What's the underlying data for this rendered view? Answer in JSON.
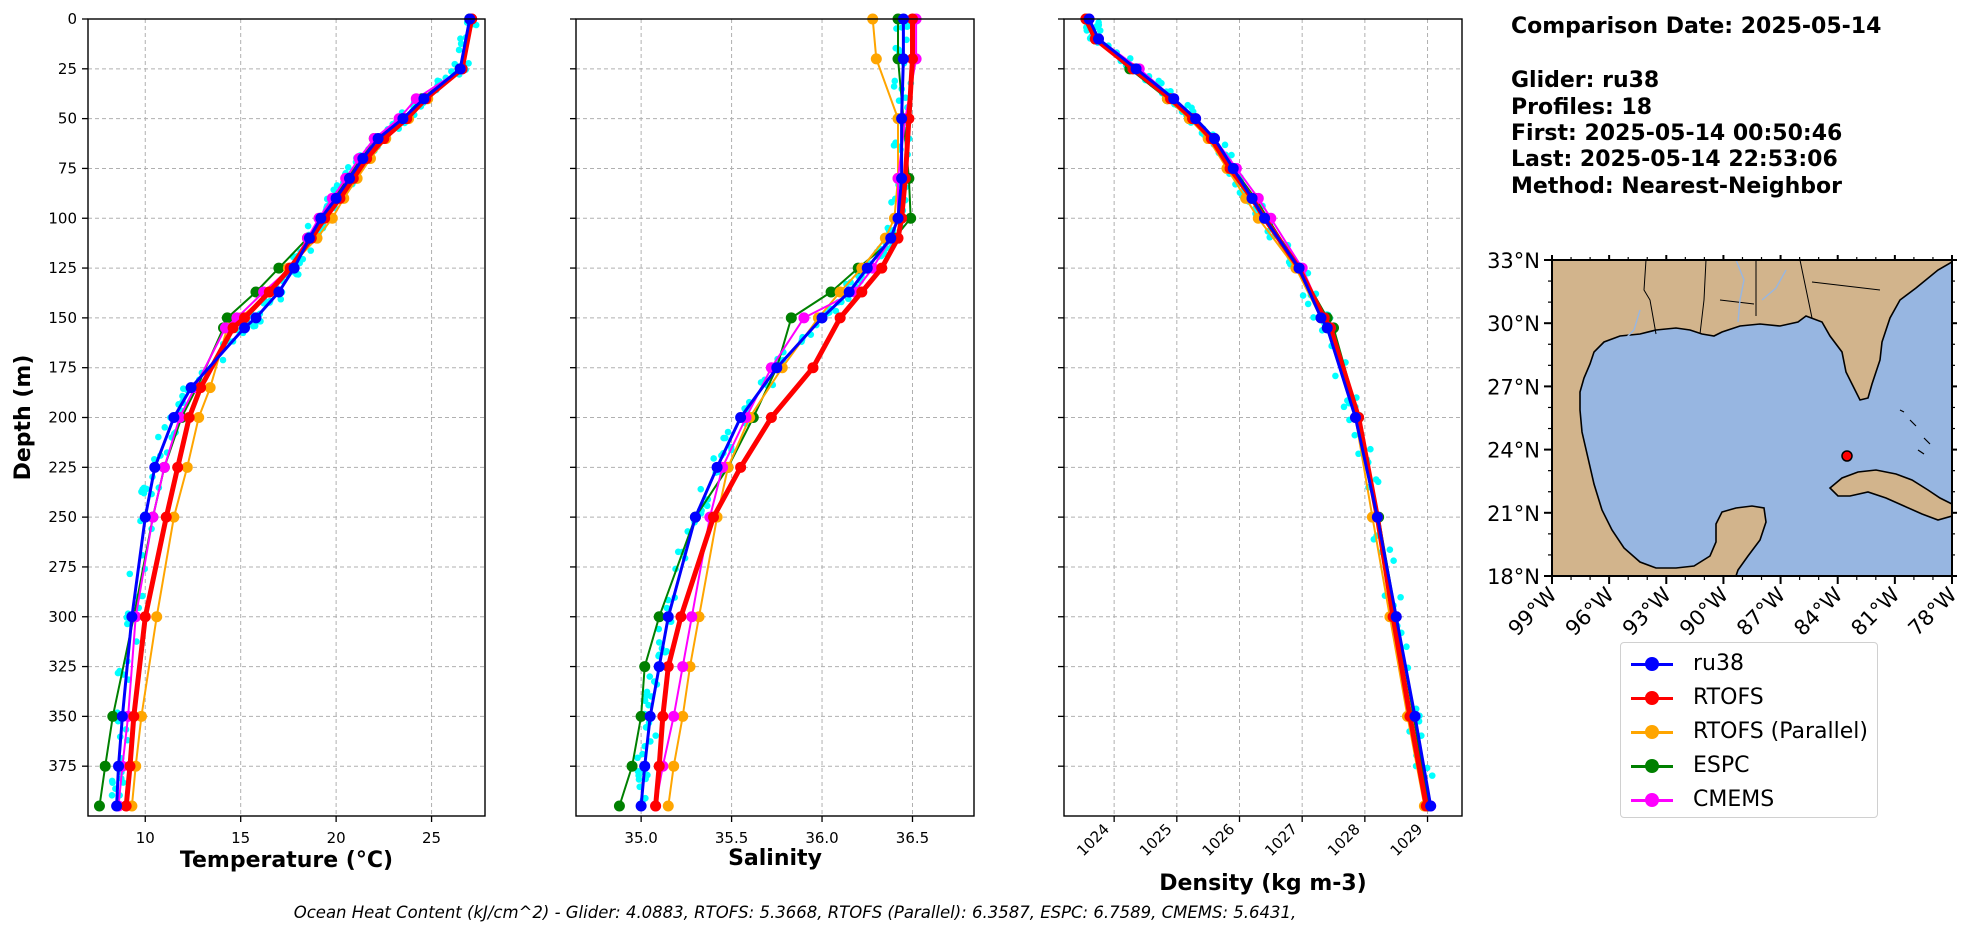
{
  "info": {
    "comparison_date": "Comparison Date: 2025-05-14",
    "glider": "Glider: ru38",
    "profiles": "Profiles: 18",
    "first": "First: 2025-05-14 00:50:46",
    "last": "Last: 2025-05-14 22:53:06",
    "method": "Method: Nearest-Neighbor"
  },
  "footer": "Ocean Heat Content (kJ/cm^2) - Glider: 4.0883,  RTOFS: 5.3668,  RTOFS (Parallel): 6.3587,  ESPC: 6.7589,  CMEMS: 5.6431,",
  "colors": {
    "ru38": "#0000ff",
    "rtofs": "#ff0000",
    "rtofs_parallel": "#ffa500",
    "espc": "#008000",
    "cmems": "#ff00ff",
    "raw": "#00ffff",
    "ocean": "#97b6e1",
    "land": "#d2b48c"
  },
  "legend": [
    {
      "label": "ru38",
      "color": "#0000ff"
    },
    {
      "label": "RTOFS",
      "color": "#ff0000"
    },
    {
      "label": "RTOFS (Parallel)",
      "color": "#ffa500"
    },
    {
      "label": "ESPC",
      "color": "#008000"
    },
    {
      "label": "CMEMS",
      "color": "#ff00ff"
    }
  ],
  "chart_data": [
    {
      "type": "line",
      "xlabel": "Temperature (°C)",
      "ylabel": "Depth (m)",
      "xlim": [
        7,
        27.8
      ],
      "ylim": [
        400,
        0
      ],
      "x_ticks": [
        "10",
        "15",
        "20",
        "25"
      ],
      "y_ticks": [
        "0",
        "25",
        "50",
        "75",
        "100",
        "125",
        "150",
        "175",
        "200",
        "225",
        "250",
        "275",
        "300",
        "325",
        "350",
        "375"
      ],
      "grid": true,
      "depth": [
        0,
        25,
        40,
        50,
        60,
        70,
        80,
        90,
        100,
        110,
        125,
        137,
        150,
        155,
        185,
        200,
        225,
        250,
        300,
        350,
        375,
        395
      ],
      "series": [
        {
          "name": "ru38",
          "values": [
            27.0,
            26.5,
            24.6,
            23.5,
            22.2,
            21.4,
            20.7,
            20.0,
            19.2,
            18.6,
            17.8,
            17.0,
            15.8,
            15.2,
            12.4,
            11.5,
            10.5,
            10.0,
            9.3,
            8.8,
            8.6,
            8.5
          ]
        },
        {
          "name": "RTOFS",
          "values": [
            27.1,
            26.6,
            24.7,
            23.7,
            22.5,
            21.6,
            20.9,
            20.2,
            19.4,
            18.7,
            17.6,
            16.5,
            15.2,
            14.6,
            12.9,
            12.3,
            11.7,
            11.1,
            10.0,
            9.4,
            9.2,
            9.0
          ]
        },
        {
          "name": "RTOFS (Parallel)",
          "values": [
            27.1,
            26.6,
            24.8,
            23.8,
            22.6,
            21.8,
            21.1,
            20.4,
            19.8,
            19.0,
            17.5,
            16.5,
            15.0,
            14.3,
            13.4,
            12.8,
            12.2,
            11.5,
            10.6,
            9.8,
            9.5,
            9.3
          ]
        },
        {
          "name": "ESPC",
          "values": [
            27.0,
            26.5,
            24.5,
            23.5,
            22.0,
            21.3,
            20.6,
            19.9,
            19.2,
            18.5,
            17.0,
            15.8,
            14.3,
            14.1,
            12.7,
            11.9,
            11.0,
            10.4,
            9.4,
            8.3,
            7.9,
            7.6
          ]
        },
        {
          "name": "CMEMS",
          "values": [
            27.1,
            26.6,
            24.2,
            23.3,
            22.0,
            21.2,
            20.5,
            19.8,
            19.1,
            18.5,
            17.6,
            16.2,
            14.8,
            14.2,
            12.6,
            11.8,
            11.0,
            10.4,
            9.5,
            9.1,
            8.8,
            8.6
          ]
        }
      ]
    },
    {
      "type": "line",
      "xlabel": "Salinity",
      "xlim": [
        34.64,
        36.84
      ],
      "ylim": [
        400,
        0
      ],
      "x_ticks": [
        "35.0",
        "35.5",
        "36.0",
        "36.5"
      ],
      "grid": true,
      "depth": [
        0,
        20,
        50,
        80,
        100,
        110,
        125,
        137,
        150,
        175,
        200,
        225,
        250,
        300,
        325,
        350,
        375,
        395
      ],
      "series": [
        {
          "name": "ru38",
          "values": [
            36.45,
            36.45,
            36.44,
            36.44,
            36.42,
            36.38,
            36.25,
            36.15,
            36.0,
            35.75,
            35.55,
            35.42,
            35.3,
            35.15,
            35.1,
            35.05,
            35.02,
            35.0
          ]
        },
        {
          "name": "RTOFS",
          "values": [
            36.5,
            36.5,
            36.48,
            36.46,
            36.44,
            36.42,
            36.33,
            36.22,
            36.1,
            35.95,
            35.72,
            35.55,
            35.4,
            35.22,
            35.15,
            35.12,
            35.1,
            35.08
          ]
        },
        {
          "name": "RTOFS (Parallel)",
          "values": [
            36.28,
            36.3,
            36.42,
            36.42,
            36.4,
            36.35,
            36.22,
            36.1,
            35.98,
            35.78,
            35.6,
            35.48,
            35.42,
            35.32,
            35.27,
            35.23,
            35.18,
            35.15
          ]
        },
        {
          "name": "ESPC",
          "values": [
            36.42,
            36.42,
            36.45,
            36.48,
            36.49,
            36.4,
            36.2,
            36.05,
            35.83,
            35.75,
            35.62,
            35.48,
            35.3,
            35.1,
            35.02,
            35.0,
            34.95,
            34.88
          ]
        },
        {
          "name": "CMEMS",
          "values": [
            36.52,
            36.52,
            36.46,
            36.42,
            36.42,
            36.38,
            36.28,
            36.18,
            35.9,
            35.72,
            35.58,
            35.45,
            35.38,
            35.28,
            35.23,
            35.18,
            35.12,
            35.08
          ]
        }
      ]
    },
    {
      "type": "line",
      "xlabel": "Density (kg m-3)",
      "xlim": [
        1023.2,
        1029.55
      ],
      "ylim": [
        400,
        0
      ],
      "x_ticks": [
        "1024",
        "1025",
        "1026",
        "1027",
        "1028",
        "1029"
      ],
      "grid": true,
      "depth": [
        0,
        10,
        25,
        40,
        50,
        60,
        75,
        90,
        100,
        125,
        150,
        155,
        200,
        250,
        300,
        350,
        395
      ],
      "series": [
        {
          "name": "ru38",
          "values": [
            1023.6,
            1023.75,
            1024.35,
            1024.95,
            1025.3,
            1025.6,
            1025.9,
            1026.2,
            1026.4,
            1026.95,
            1027.3,
            1027.4,
            1027.85,
            1028.2,
            1028.5,
            1028.8,
            1029.05
          ]
        },
        {
          "name": "RTOFS",
          "values": [
            1023.55,
            1023.7,
            1024.3,
            1024.9,
            1025.25,
            1025.55,
            1025.85,
            1026.2,
            1026.4,
            1026.95,
            1027.35,
            1027.45,
            1027.9,
            1028.2,
            1028.45,
            1028.72,
            1028.98
          ]
        },
        {
          "name": "RTOFS (Parallel)",
          "values": [
            1023.55,
            1023.7,
            1024.3,
            1024.85,
            1025.2,
            1025.5,
            1025.8,
            1026.1,
            1026.3,
            1026.9,
            1027.3,
            1027.4,
            1027.85,
            1028.12,
            1028.4,
            1028.68,
            1028.95
          ]
        },
        {
          "name": "ESPC",
          "values": [
            1023.55,
            1023.7,
            1024.25,
            1024.85,
            1025.2,
            1025.6,
            1025.9,
            1026.25,
            1026.45,
            1026.95,
            1027.4,
            1027.5,
            1027.9,
            1028.22,
            1028.5,
            1028.78,
            1029.02
          ]
        },
        {
          "name": "CMEMS",
          "values": [
            1023.6,
            1023.75,
            1024.4,
            1024.95,
            1025.3,
            1025.6,
            1025.95,
            1026.3,
            1026.5,
            1027.0,
            1027.35,
            1027.45,
            1027.88,
            1028.2,
            1028.5,
            1028.8,
            1029.05
          ]
        }
      ]
    }
  ],
  "map": {
    "lon_labels": [
      "99°W",
      "96°W",
      "93°W",
      "90°W",
      "87°W",
      "84°W",
      "81°W",
      "78°W"
    ],
    "lat_labels": [
      "33°N",
      "30°N",
      "27°N",
      "24°N",
      "21°N",
      "18°N"
    ],
    "lon_range": [
      -99,
      -78
    ],
    "lat_range": [
      18,
      33
    ],
    "glider_position": [
      -83.9,
      24.0
    ]
  }
}
